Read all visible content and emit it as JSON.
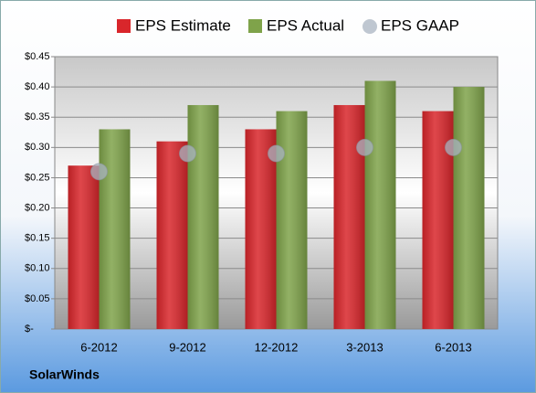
{
  "chart_data": {
    "type": "bar",
    "footer": "SolarWinds",
    "categories": [
      "6-2012",
      "9-2012",
      "12-2012",
      "3-2013",
      "6-2013"
    ],
    "series": [
      {
        "name": "EPS Estimate",
        "color": "#d9262b",
        "values": [
          0.27,
          0.31,
          0.33,
          0.37,
          0.36
        ]
      },
      {
        "name": "EPS Actual",
        "color": "#7fa34a",
        "values": [
          0.33,
          0.37,
          0.36,
          0.41,
          0.4
        ]
      },
      {
        "name": "EPS GAAP",
        "color": "#a9b4c2",
        "marker": "circle",
        "values": [
          0.26,
          0.29,
          0.29,
          0.3,
          0.3
        ]
      }
    ],
    "ylim": [
      0,
      0.45
    ],
    "yticks": [
      {
        "value": 0,
        "label": "$-"
      },
      {
        "value": 0.05,
        "label": "$0.05"
      },
      {
        "value": 0.1,
        "label": "$0.10"
      },
      {
        "value": 0.15,
        "label": "$0.15"
      },
      {
        "value": 0.2,
        "label": "$0.20"
      },
      {
        "value": 0.25,
        "label": "$0.25"
      },
      {
        "value": 0.3,
        "label": "$0.30"
      },
      {
        "value": 0.35,
        "label": "$0.35"
      },
      {
        "value": 0.4,
        "label": "$0.40"
      },
      {
        "value": 0.45,
        "label": "$0.45"
      }
    ],
    "grid": true
  }
}
